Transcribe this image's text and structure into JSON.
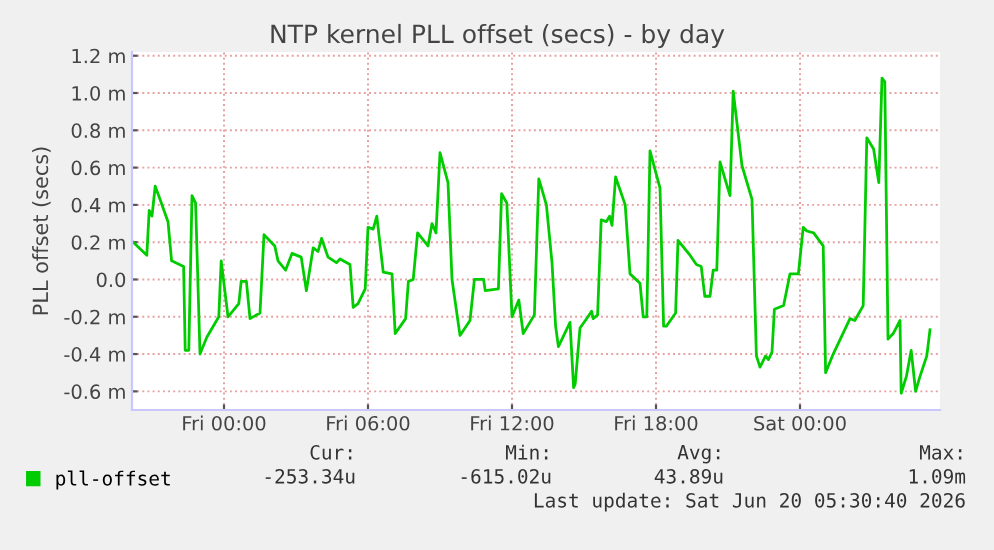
{
  "chart_data": {
    "type": "line",
    "title": "NTP kernel PLL offset (secs) - by day",
    "ylabel": "PLL offset (secs)",
    "series": [
      {
        "name": "pll-offset",
        "color": "#00cc00",
        "x": [
          "2026-06-18T20:13",
          "2026-06-18T20:47",
          "2026-06-18T20:53",
          "2026-06-18T21:00",
          "2026-06-18T21:08",
          "2026-06-18T21:20",
          "2026-06-18T21:40",
          "2026-06-18T21:49",
          "2026-06-18T22:19",
          "2026-06-18T22:23",
          "2026-06-18T22:32",
          "2026-06-18T22:40",
          "2026-06-18T22:49",
          "2026-06-18T23:00",
          "2026-06-18T23:17",
          "2026-06-18T23:47",
          "2026-06-18T23:53",
          "2026-06-19T00:10",
          "2026-06-19T00:37",
          "2026-06-19T00:43",
          "2026-06-19T00:56",
          "2026-06-19T01:05",
          "2026-06-19T01:30",
          "2026-06-19T01:40",
          "2026-06-19T02:07",
          "2026-06-19T02:15",
          "2026-06-19T02:34",
          "2026-06-19T02:50",
          "2026-06-19T03:13",
          "2026-06-19T03:26",
          "2026-06-19T03:43",
          "2026-06-19T03:55",
          "2026-06-19T04:04",
          "2026-06-19T04:20",
          "2026-06-19T04:41",
          "2026-06-19T04:50",
          "2026-06-19T05:15",
          "2026-06-19T05:23",
          "2026-06-19T05:35",
          "2026-06-19T05:53",
          "2026-06-19T06:00",
          "2026-06-19T06:13",
          "2026-06-19T06:22",
          "2026-06-19T06:38",
          "2026-06-19T07:00",
          "2026-06-19T07:08",
          "2026-06-19T07:34",
          "2026-06-19T07:41",
          "2026-06-19T07:53",
          "2026-06-19T08:04",
          "2026-06-19T08:30",
          "2026-06-19T08:40",
          "2026-06-19T08:50",
          "2026-06-19T09:00",
          "2026-06-19T09:20",
          "2026-06-19T09:30",
          "2026-06-19T09:50",
          "2026-06-19T10:15",
          "2026-06-19T10:26",
          "2026-06-19T10:49",
          "2026-06-19T10:53",
          "2026-06-19T11:26",
          "2026-06-19T11:34",
          "2026-06-19T11:47",
          "2026-06-19T12:00",
          "2026-06-19T12:17",
          "2026-06-19T12:28",
          "2026-06-19T12:56",
          "2026-06-19T13:07",
          "2026-06-19T13:26",
          "2026-06-19T13:40",
          "2026-06-19T13:49",
          "2026-06-19T13:56",
          "2026-06-19T14:25",
          "2026-06-19T14:34",
          "2026-06-19T14:38",
          "2026-06-19T14:50",
          "2026-06-19T15:10",
          "2026-06-19T15:19",
          "2026-06-19T15:23",
          "2026-06-19T15:34",
          "2026-06-19T15:43",
          "2026-06-19T15:56",
          "2026-06-19T16:04",
          "2026-06-19T16:10",
          "2026-06-19T16:19",
          "2026-06-19T16:43",
          "2026-06-19T16:55",
          "2026-06-19T17:20",
          "2026-06-19T17:28",
          "2026-06-19T17:37",
          "2026-06-19T17:45",
          "2026-06-19T18:10",
          "2026-06-19T18:19",
          "2026-06-19T18:26",
          "2026-06-19T18:49",
          "2026-06-19T18:55",
          "2026-06-19T19:25",
          "2026-06-19T19:41",
          "2026-06-19T19:53",
          "2026-06-19T20:02",
          "2026-06-19T20:15",
          "2026-06-19T20:23",
          "2026-06-19T20:32",
          "2026-06-19T20:40",
          "2026-06-19T21:05",
          "2026-06-19T21:13",
          "2026-06-19T21:35",
          "2026-06-19T22:00",
          "2026-06-19T22:11",
          "2026-06-19T22:20",
          "2026-06-19T22:34",
          "2026-06-19T22:41",
          "2026-06-19T22:50",
          "2026-06-19T22:56",
          "2026-06-19T23:19",
          "2026-06-19T23:35",
          "2026-06-19T23:56",
          "2026-06-20T00:08",
          "2026-06-20T00:17",
          "2026-06-20T00:34",
          "2026-06-20T00:58",
          "2026-06-20T01:04",
          "2026-06-20T01:23",
          "2026-06-20T02:05",
          "2026-06-20T02:17",
          "2026-06-20T02:38",
          "2026-06-20T02:47",
          "2026-06-20T03:04",
          "2026-06-20T03:17",
          "2026-06-20T03:25",
          "2026-06-20T03:32",
          "2026-06-20T03:40",
          "2026-06-20T03:53",
          "2026-06-20T04:10",
          "2026-06-20T04:13",
          "2026-06-20T04:26",
          "2026-06-20T04:38",
          "2026-06-20T04:49",
          "2026-06-20T05:00",
          "2026-06-20T05:17",
          "2026-06-20T05:25"
        ],
        "values": [
          0.2,
          0.13,
          0.37,
          0.34,
          0.5,
          0.43,
          0.31,
          0.1,
          0.07,
          -0.38,
          -0.38,
          0.45,
          0.41,
          -0.4,
          -0.31,
          -0.2,
          0.1,
          -0.2,
          -0.13,
          -0.01,
          -0.01,
          -0.21,
          -0.18,
          0.24,
          0.18,
          0.1,
          0.05,
          0.14,
          0.12,
          -0.06,
          0.17,
          0.15,
          0.22,
          0.12,
          0.09,
          0.11,
          0.08,
          -0.15,
          -0.13,
          -0.05,
          0.28,
          0.27,
          0.34,
          0.04,
          0.03,
          -0.29,
          -0.21,
          -0.01,
          0.0,
          0.25,
          0.18,
          0.3,
          0.25,
          0.68,
          0.52,
          0.0,
          -0.3,
          -0.22,
          0.0,
          0.0,
          -0.06,
          -0.05,
          0.46,
          0.41,
          -0.2,
          -0.11,
          -0.29,
          -0.19,
          0.54,
          0.4,
          0.09,
          -0.25,
          -0.36,
          -0.23,
          -0.58,
          -0.56,
          -0.26,
          -0.2,
          -0.17,
          -0.21,
          -0.19,
          0.32,
          0.31,
          0.34,
          0.29,
          0.55,
          0.4,
          0.03,
          -0.02,
          -0.2,
          -0.2,
          0.69,
          0.49,
          -0.25,
          -0.25,
          -0.18,
          0.21,
          0.13,
          0.08,
          0.07,
          -0.09,
          -0.09,
          0.05,
          0.05,
          0.63,
          0.45,
          1.01,
          0.61,
          0.43,
          -0.41,
          -0.47,
          -0.41,
          -0.43,
          -0.39,
          -0.16,
          -0.14,
          0.03,
          0.03,
          0.28,
          0.26,
          0.25,
          0.18,
          -0.5,
          -0.4,
          -0.21,
          -0.22,
          -0.14,
          0.76,
          0.7,
          0.52,
          1.08,
          1.06,
          -0.32,
          -0.29,
          -0.22,
          -0.61,
          -0.52,
          -0.38,
          -0.6,
          -0.52,
          -0.41,
          -0.27
        ]
      }
    ],
    "xlim": [
      "2026-06-18T20:10",
      "2026-06-20T05:50"
    ],
    "xticks": [
      {
        "value": "2026-06-19T00:00",
        "label": "Fri 00:00"
      },
      {
        "value": "2026-06-19T06:00",
        "label": "Fri 06:00"
      },
      {
        "value": "2026-06-19T12:00",
        "label": "Fri 12:00"
      },
      {
        "value": "2026-06-19T18:00",
        "label": "Fri 18:00"
      },
      {
        "value": "2026-06-20T00:00",
        "label": "Sat 00:00"
      }
    ],
    "ylim": [
      -0.7,
      1.22
    ],
    "yticks": [
      {
        "value": 1.2,
        "label": "1.2 m"
      },
      {
        "value": 1.0,
        "label": "1.0 m"
      },
      {
        "value": 0.8,
        "label": "0.8 m"
      },
      {
        "value": 0.6,
        "label": "0.6 m"
      },
      {
        "value": 0.4,
        "label": "0.4 m"
      },
      {
        "value": 0.2,
        "label": "0.2 m"
      },
      {
        "value": 0.0,
        "label": "0.0"
      },
      {
        "value": -0.2,
        "label": "-0.2 m"
      },
      {
        "value": -0.4,
        "label": "-0.4 m"
      },
      {
        "value": -0.6,
        "label": "-0.6 m"
      }
    ],
    "grid": true,
    "legend": "bottom left",
    "line_style": "solid",
    "marker": "none",
    "annotations": [
      "Cur:",
      "-253.34u",
      "Min:",
      "-615.02u",
      "Avg:",
      "43.89u",
      "Max:",
      "1.09m",
      "Last update: Sat Jun 20 05:30:40 2026"
    ]
  }
}
